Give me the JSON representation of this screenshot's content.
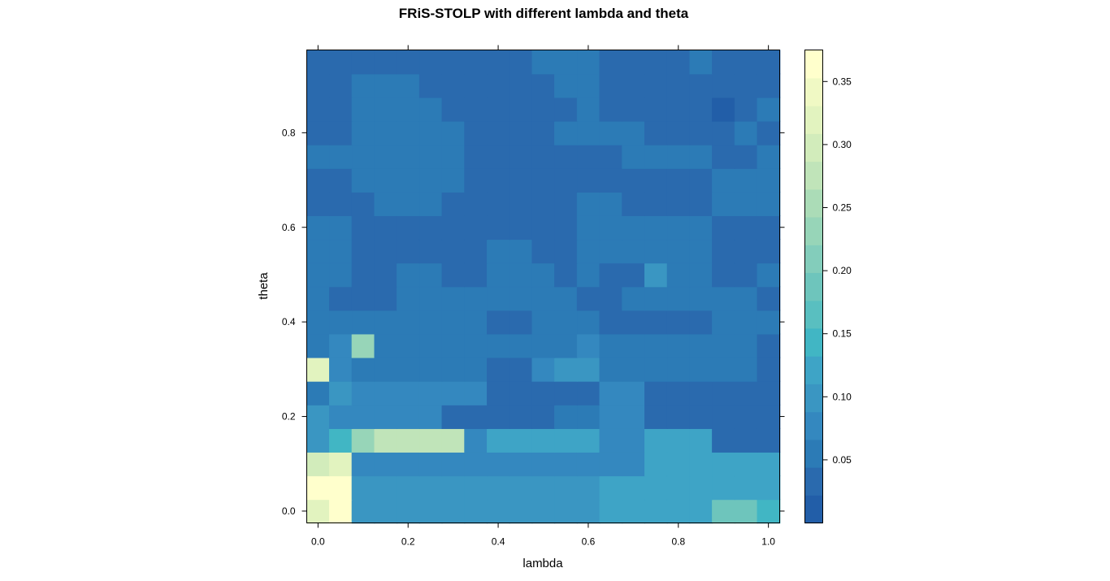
{
  "chart_data": {
    "type": "heatmap",
    "title": "FRiS-STOLP with different lambda and theta",
    "xlabel": "lambda",
    "ylabel": "theta",
    "x_ticks": [
      "0.0",
      "0.2",
      "0.4",
      "0.6",
      "0.8",
      "1.0"
    ],
    "y_ticks": [
      "0.0",
      "0.2",
      "0.4",
      "0.6",
      "0.8"
    ],
    "colorbar_ticks": [
      "0.05",
      "0.10",
      "0.15",
      "0.20",
      "0.25",
      "0.30",
      "0.35"
    ],
    "x": [
      0.0,
      0.05,
      0.1,
      0.15,
      0.2,
      0.25,
      0.3,
      0.35,
      0.4,
      0.45,
      0.5,
      0.55,
      0.6,
      0.65,
      0.7,
      0.75,
      0.8,
      0.85,
      0.9,
      0.95,
      1.0
    ],
    "y": [
      0.0,
      0.05,
      0.1,
      0.15,
      0.2,
      0.25,
      0.3,
      0.35,
      0.4,
      0.45,
      0.5,
      0.55,
      0.6,
      0.65,
      0.7,
      0.75,
      0.8,
      0.85,
      0.9,
      0.95
    ],
    "xlim": [
      -0.025,
      1.025
    ],
    "ylim": [
      -0.025,
      0.975
    ],
    "zlim": [
      0.0,
      0.375
    ],
    "z_rows_from_bottom": [
      [
        0.33,
        0.37,
        0.09,
        0.09,
        0.09,
        0.09,
        0.09,
        0.09,
        0.09,
        0.09,
        0.09,
        0.09,
        0.09,
        0.12,
        0.12,
        0.12,
        0.12,
        0.12,
        0.19,
        0.19,
        0.14
      ],
      [
        0.37,
        0.37,
        0.09,
        0.09,
        0.09,
        0.09,
        0.09,
        0.09,
        0.09,
        0.09,
        0.09,
        0.09,
        0.09,
        0.12,
        0.12,
        0.12,
        0.12,
        0.12,
        0.12,
        0.12,
        0.12
      ],
      [
        0.29,
        0.33,
        0.08,
        0.08,
        0.08,
        0.08,
        0.08,
        0.08,
        0.08,
        0.08,
        0.08,
        0.08,
        0.08,
        0.08,
        0.08,
        0.12,
        0.12,
        0.12,
        0.12,
        0.12,
        0.12
      ],
      [
        0.11,
        0.14,
        0.23,
        0.27,
        0.27,
        0.27,
        0.27,
        0.07,
        0.12,
        0.12,
        0.12,
        0.12,
        0.12,
        0.08,
        0.08,
        0.12,
        0.12,
        0.12,
        0.04,
        0.04,
        0.04
      ],
      [
        0.11,
        0.07,
        0.07,
        0.07,
        0.07,
        0.07,
        0.04,
        0.04,
        0.04,
        0.04,
        0.04,
        0.06,
        0.06,
        0.08,
        0.08,
        0.04,
        0.04,
        0.04,
        0.04,
        0.04,
        0.04
      ],
      [
        0.05,
        0.11,
        0.08,
        0.08,
        0.08,
        0.08,
        0.07,
        0.07,
        0.04,
        0.04,
        0.04,
        0.04,
        0.04,
        0.07,
        0.07,
        0.04,
        0.04,
        0.04,
        0.04,
        0.04,
        0.04
      ],
      [
        0.32,
        0.07,
        0.05,
        0.05,
        0.05,
        0.05,
        0.05,
        0.05,
        0.04,
        0.04,
        0.07,
        0.09,
        0.09,
        0.06,
        0.06,
        0.06,
        0.06,
        0.06,
        0.06,
        0.06,
        0.04
      ],
      [
        0.05,
        0.07,
        0.23,
        0.06,
        0.06,
        0.06,
        0.06,
        0.06,
        0.06,
        0.06,
        0.06,
        0.06,
        0.08,
        0.06,
        0.06,
        0.06,
        0.06,
        0.06,
        0.06,
        0.06,
        0.04
      ],
      [
        0.06,
        0.06,
        0.06,
        0.06,
        0.06,
        0.06,
        0.06,
        0.06,
        0.04,
        0.04,
        0.06,
        0.06,
        0.06,
        0.04,
        0.04,
        0.04,
        0.04,
        0.04,
        0.06,
        0.06,
        0.06
      ],
      [
        0.06,
        0.04,
        0.04,
        0.04,
        0.06,
        0.06,
        0.06,
        0.06,
        0.06,
        0.06,
        0.06,
        0.06,
        0.04,
        0.04,
        0.06,
        0.06,
        0.06,
        0.06,
        0.06,
        0.06,
        0.04
      ],
      [
        0.06,
        0.06,
        0.04,
        0.04,
        0.06,
        0.06,
        0.04,
        0.04,
        0.06,
        0.06,
        0.06,
        0.04,
        0.06,
        0.04,
        0.04,
        0.09,
        0.06,
        0.06,
        0.04,
        0.04,
        0.06
      ],
      [
        0.06,
        0.06,
        0.04,
        0.04,
        0.04,
        0.04,
        0.04,
        0.04,
        0.06,
        0.06,
        0.04,
        0.04,
        0.06,
        0.06,
        0.06,
        0.06,
        0.06,
        0.06,
        0.04,
        0.04,
        0.04
      ],
      [
        0.06,
        0.06,
        0.04,
        0.04,
        0.04,
        0.04,
        0.04,
        0.04,
        0.04,
        0.04,
        0.04,
        0.04,
        0.06,
        0.06,
        0.06,
        0.06,
        0.06,
        0.06,
        0.04,
        0.04,
        0.04
      ],
      [
        0.04,
        0.04,
        0.04,
        0.06,
        0.06,
        0.06,
        0.04,
        0.04,
        0.04,
        0.04,
        0.04,
        0.04,
        0.06,
        0.06,
        0.04,
        0.04,
        0.04,
        0.04,
        0.06,
        0.06,
        0.06
      ],
      [
        0.04,
        0.04,
        0.06,
        0.06,
        0.06,
        0.06,
        0.06,
        0.04,
        0.04,
        0.04,
        0.04,
        0.04,
        0.04,
        0.04,
        0.04,
        0.04,
        0.04,
        0.04,
        0.06,
        0.06,
        0.06
      ],
      [
        0.06,
        0.06,
        0.06,
        0.06,
        0.06,
        0.06,
        0.06,
        0.04,
        0.04,
        0.04,
        0.04,
        0.04,
        0.04,
        0.04,
        0.06,
        0.06,
        0.06,
        0.06,
        0.04,
        0.04,
        0.06
      ],
      [
        0.04,
        0.04,
        0.06,
        0.06,
        0.06,
        0.06,
        0.06,
        0.04,
        0.04,
        0.04,
        0.04,
        0.06,
        0.06,
        0.06,
        0.06,
        0.04,
        0.04,
        0.04,
        0.04,
        0.06,
        0.04
      ],
      [
        0.04,
        0.04,
        0.06,
        0.06,
        0.06,
        0.06,
        0.04,
        0.04,
        0.04,
        0.04,
        0.04,
        0.04,
        0.06,
        0.04,
        0.04,
        0.04,
        0.04,
        0.04,
        0.02,
        0.04,
        0.06
      ],
      [
        0.04,
        0.04,
        0.06,
        0.06,
        0.06,
        0.04,
        0.04,
        0.04,
        0.04,
        0.04,
        0.04,
        0.06,
        0.06,
        0.04,
        0.04,
        0.04,
        0.04,
        0.04,
        0.04,
        0.04,
        0.04
      ],
      [
        0.04,
        0.04,
        0.04,
        0.04,
        0.04,
        0.04,
        0.04,
        0.04,
        0.04,
        0.04,
        0.06,
        0.06,
        0.06,
        0.04,
        0.04,
        0.04,
        0.04,
        0.06,
        0.04,
        0.04,
        0.04
      ]
    ],
    "colors": [
      "#225ea8",
      "#2a6aae",
      "#2c7bb6",
      "#3488bf",
      "#3a96c2",
      "#3ea4c6",
      "#41b6c4",
      "#59bfc0",
      "#6ec5bc",
      "#83cdbb",
      "#97d5b8",
      "#abdcb7",
      "#c0e4b9",
      "#d2ecbb",
      "#e2f3bf",
      "#f0f9c4",
      "#ffffcc"
    ],
    "grid": false,
    "legend": "colorbar-right"
  }
}
